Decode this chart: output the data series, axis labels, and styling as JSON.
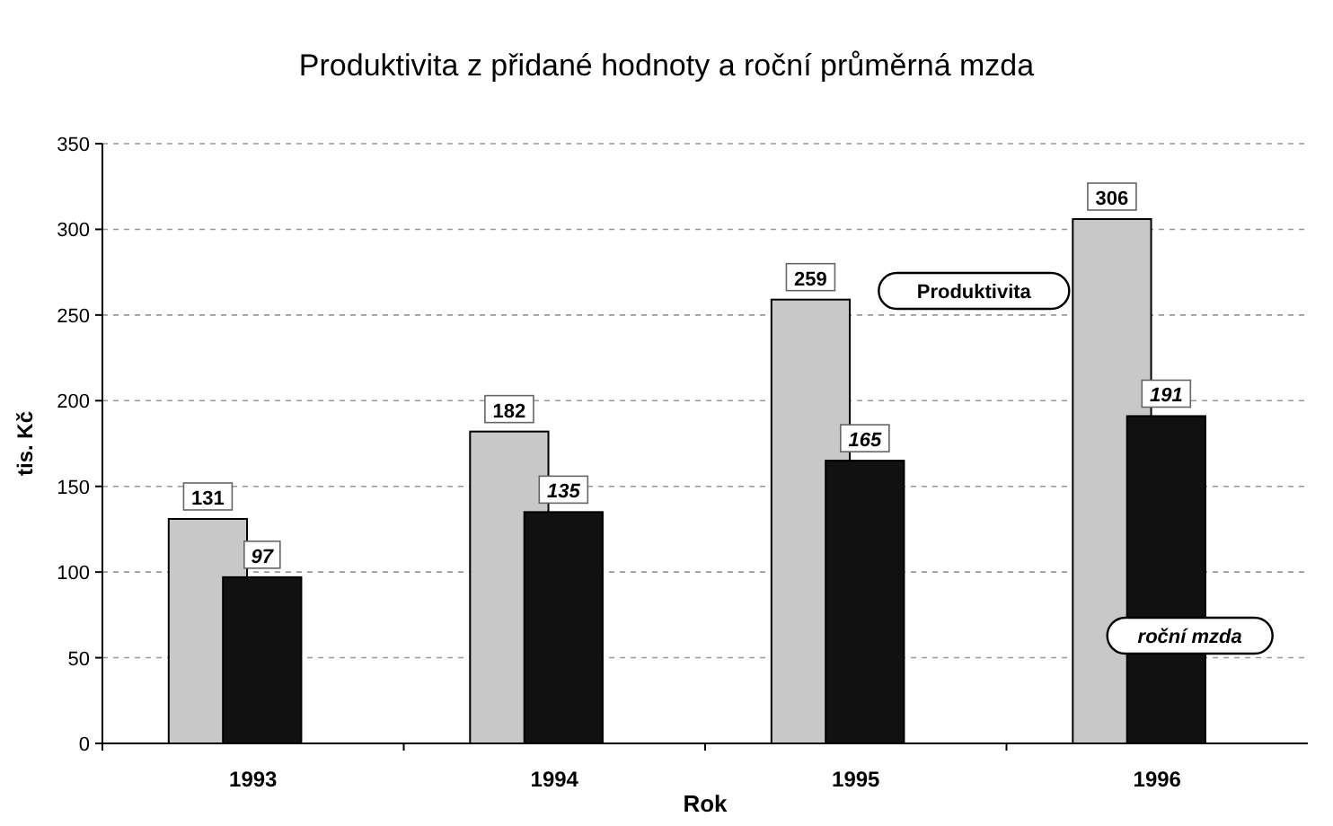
{
  "chart_data": {
    "type": "bar",
    "title": "Produktivita z přidané hodnoty a roční průměrná mzda",
    "xlabel": "Rok",
    "ylabel": "tis. Kč",
    "categories": [
      "1993",
      "1994",
      "1995",
      "1996"
    ],
    "series": [
      {
        "name": "Produktivita",
        "color": "#c8c8c8",
        "values": [
          131,
          182,
          259,
          306
        ]
      },
      {
        "name": "roční mzda",
        "color": "#111111",
        "values": [
          97,
          135,
          165,
          191
        ]
      }
    ],
    "ylim": [
      0,
      350
    ],
    "yticks": [
      0,
      50,
      100,
      150,
      200,
      250,
      300,
      350
    ],
    "grid": "y",
    "data_labels": true
  }
}
